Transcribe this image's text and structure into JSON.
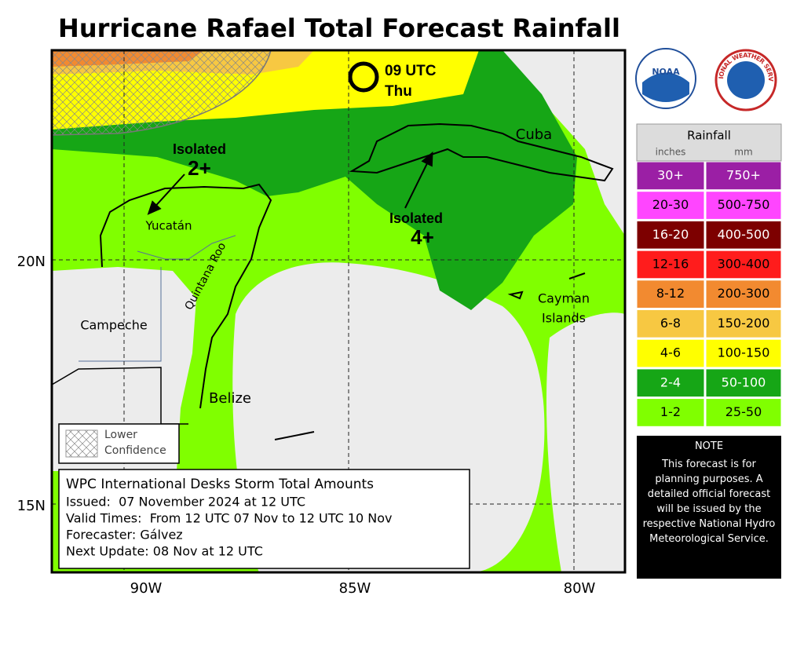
{
  "title": "Hurricane Rafael Total Forecast Rainfall",
  "map": {
    "lon_labels": [
      "90W",
      "85W",
      "80W"
    ],
    "lat_labels": [
      "20N",
      "15N"
    ],
    "places": {
      "yucatan": "Yucatán",
      "quintana_roo": "Quintana Roo",
      "campeche": "Campeche",
      "belize": "Belize",
      "cuba": "Cuba",
      "cayman": [
        "Cayman",
        "Islands"
      ]
    },
    "annotations": [
      {
        "line1": "Isolated",
        "line2": "2+"
      },
      {
        "line1": "Isolated",
        "line2": "4+"
      }
    ],
    "position": {
      "time": "09 UTC",
      "day": "Thu"
    }
  },
  "logos": {
    "noaa": "NOAA",
    "nws": "NATIONAL WEATHER SERVICE"
  },
  "legend": {
    "title": "Rainfall",
    "units": [
      "inches",
      "mm"
    ],
    "rows": [
      {
        "inches": "30+",
        "mm": "750+",
        "color": "#9b1fa5"
      },
      {
        "inches": "20-30",
        "mm": "500-750",
        "color": "#ff45ff"
      },
      {
        "inches": "16-20",
        "mm": "400-500",
        "color": "#7d0000"
      },
      {
        "inches": "12-16",
        "mm": "300-400",
        "color": "#ff1c1c"
      },
      {
        "inches": "8-12",
        "mm": "200-300",
        "color": "#f28a30"
      },
      {
        "inches": "6-8",
        "mm": "150-200",
        "color": "#f7c842"
      },
      {
        "inches": "4-6",
        "mm": "100-150",
        "color": "#ffff00"
      },
      {
        "inches": "2-4",
        "mm": "50-100",
        "color": "#16a616"
      },
      {
        "inches": "1-2",
        "mm": "25-50",
        "color": "#80ff00"
      }
    ]
  },
  "confidence": [
    "Lower",
    "Confidence"
  ],
  "info": {
    "heading": "WPC International Desks Storm Total Amounts",
    "lines": [
      "Issued:  07 November 2024 at 12 UTC",
      "Valid Times:  From 12 UTC 07 Nov to 12 UTC 10 Nov",
      "Forecaster: Gálvez",
      "Next Update: 08 Nov at 12 UTC"
    ]
  },
  "note": {
    "title": "NOTE",
    "text": "This forecast is for planning purposes. A detailed official forecast will be issued by the respective National Hydro Meteorological Service."
  }
}
